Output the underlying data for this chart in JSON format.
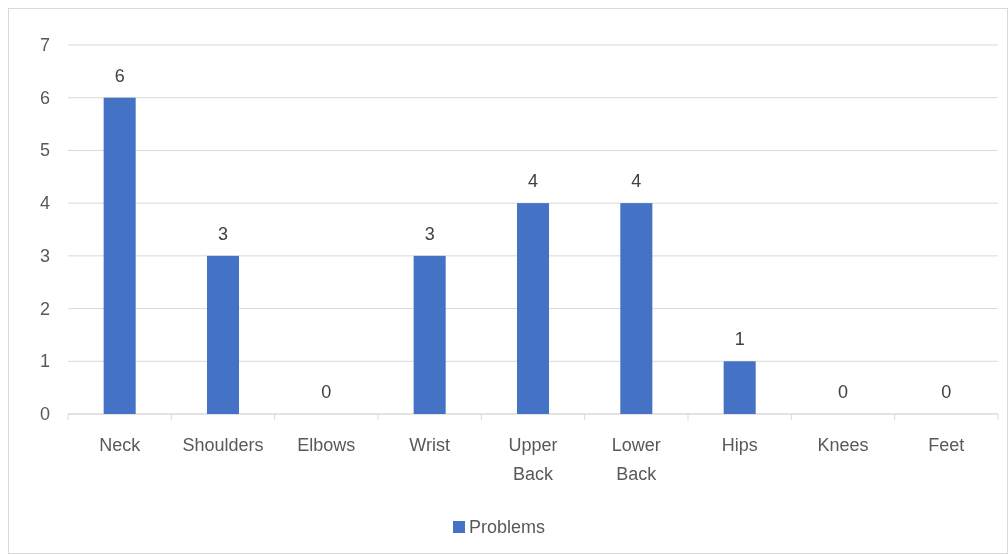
{
  "chart_data": {
    "type": "bar",
    "categories": [
      "Neck",
      "Shoulders",
      "Elbows",
      "Wrist",
      "Upper Back",
      "Lower Back",
      "Hips",
      "Knees",
      "Feet"
    ],
    "series": [
      {
        "name": "Problems",
        "color": "#4472c4",
        "values": [
          6,
          3,
          0,
          3,
          4,
          4,
          1,
          0,
          0
        ]
      }
    ],
    "ylim": [
      0,
      7
    ],
    "yticks": [
      0,
      1,
      2,
      3,
      4,
      5,
      6,
      7
    ],
    "grid": "y",
    "data_labels": true,
    "legend": "bottom"
  }
}
